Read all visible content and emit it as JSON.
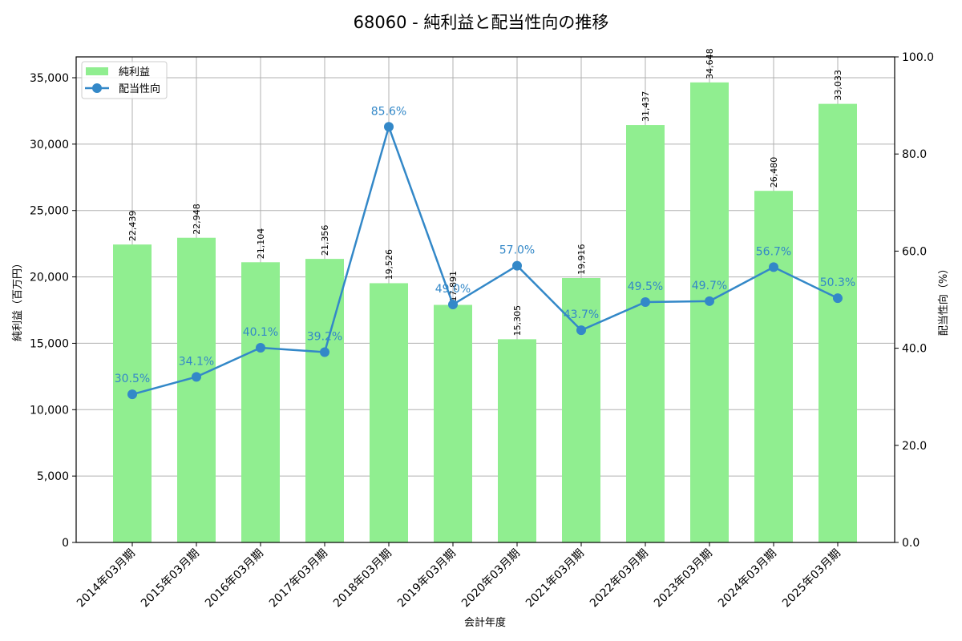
{
  "chart_data": {
    "type": "bar+line",
    "title": "68060 - 純利益と配当性向の推移",
    "xlabel": "会計年度",
    "ylabel_left": "純利益（百万円）",
    "ylabel_right": "配当性向（%）",
    "categories": [
      "2014年03月期",
      "2015年03月期",
      "2016年03月期",
      "2017年03月期",
      "2018年03月期",
      "2019年03月期",
      "2020年03月期",
      "2021年03月期",
      "2022年03月期",
      "2023年03月期",
      "2024年03月期",
      "2025年03月期"
    ],
    "series": [
      {
        "name": "純利益",
        "type": "bar",
        "axis": "left",
        "color": "#90ee90",
        "values": [
          22439,
          22948,
          21104,
          21356,
          19526,
          17891,
          15305,
          19916,
          31437,
          34648,
          26480,
          33033
        ],
        "labels": [
          "22,439",
          "22,948",
          "21,104",
          "21,356",
          "19,526",
          "17,891",
          "15,305",
          "19,916",
          "31,437",
          "34,648",
          "26,480",
          "33,033"
        ]
      },
      {
        "name": "配当性向",
        "type": "line",
        "axis": "right",
        "color": "#3388c8",
        "values": [
          30.5,
          34.1,
          40.1,
          39.2,
          85.6,
          49.0,
          57.0,
          43.7,
          49.5,
          49.7,
          56.7,
          50.3
        ],
        "labels": [
          "30.5%",
          "34.1%",
          "40.1%",
          "39.2%",
          "85.6%",
          "49.0%",
          "57.0%",
          "43.7%",
          "49.5%",
          "49.7%",
          "56.7%",
          "50.3%"
        ]
      }
    ],
    "ylim_left": [
      0,
      36570
    ],
    "yticks_left": [
      "0",
      "5,000",
      "10,000",
      "15,000",
      "20,000",
      "25,000",
      "30,000",
      "35,000"
    ],
    "yticks_left_values": [
      0,
      5000,
      10000,
      15000,
      20000,
      25000,
      30000,
      35000
    ],
    "ylim_right": [
      0,
      100
    ],
    "yticks_right": [
      "0.0",
      "20.0",
      "40.0",
      "60.0",
      "80.0",
      "100.0"
    ],
    "yticks_right_values": [
      0,
      20,
      40,
      60,
      80,
      100
    ],
    "grid": true,
    "legend_position": "upper left"
  }
}
